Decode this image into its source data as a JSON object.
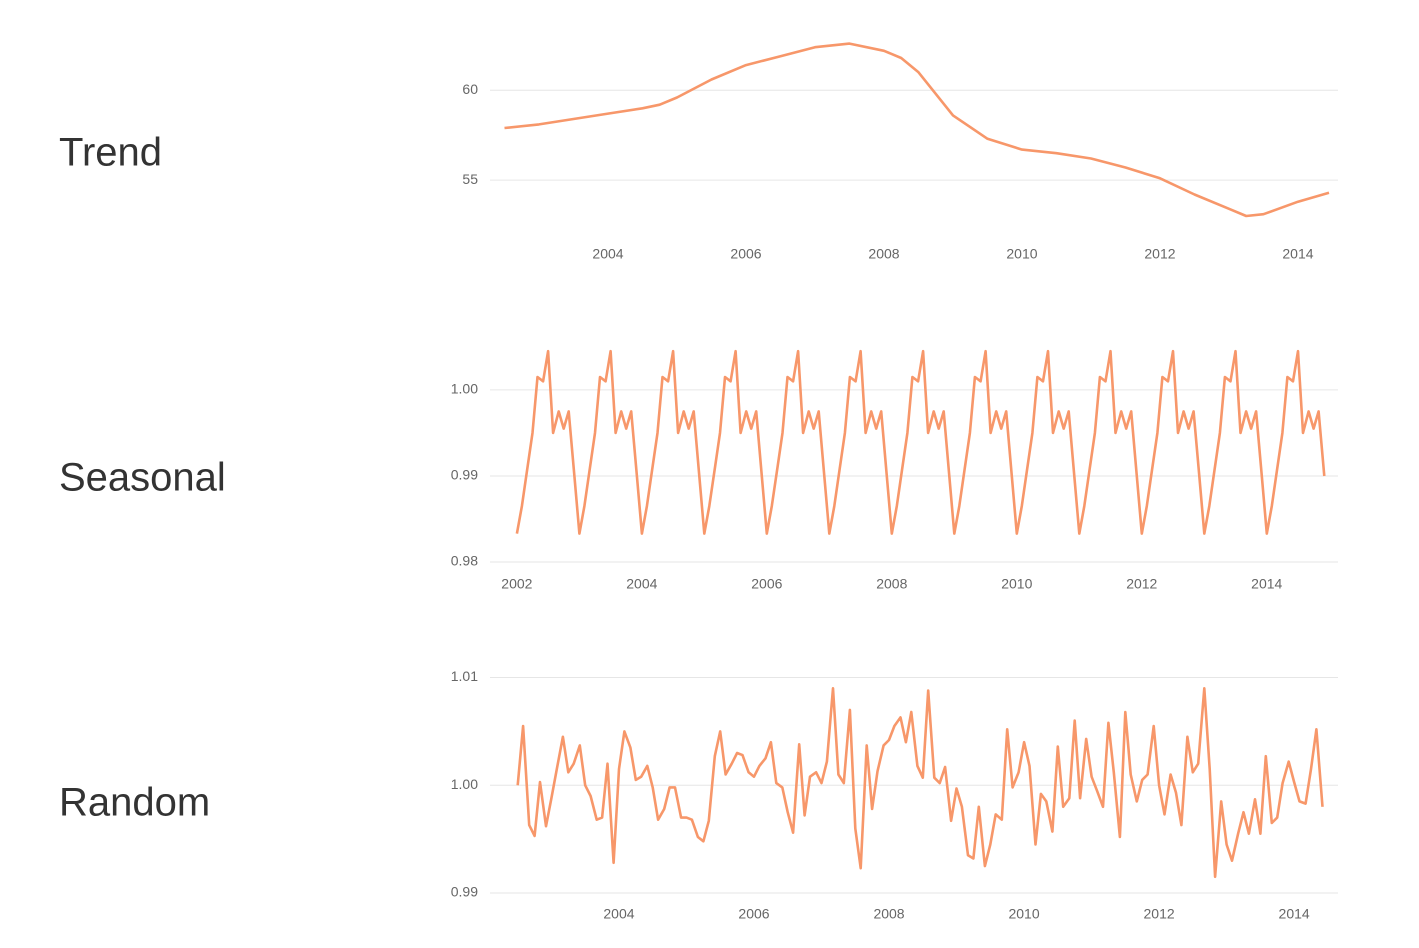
{
  "chart_data": [
    {
      "type": "line",
      "title": "Trend",
      "color": "#f7976a",
      "grid": true,
      "x": [
        2002.5,
        2003,
        2003.5,
        2004,
        2004.5,
        2004.75,
        2005,
        2005.5,
        2006,
        2006.5,
        2007,
        2007.5,
        2008,
        2008.25,
        2008.5,
        2009,
        2009.5,
        2010,
        2010.5,
        2011,
        2011.5,
        2012,
        2012.5,
        2013,
        2013.25,
        2013.5,
        2014,
        2014.45
      ],
      "values": [
        57.9,
        58.1,
        58.4,
        58.7,
        59.0,
        59.2,
        59.6,
        60.6,
        61.4,
        61.9,
        62.4,
        62.6,
        62.2,
        61.8,
        61.0,
        58.6,
        57.3,
        56.7,
        56.5,
        56.2,
        55.7,
        55.1,
        54.2,
        53.4,
        53.0,
        53.1,
        53.8,
        54.3
      ],
      "xlim": [
        2002.29,
        2014.58
      ],
      "xticks": [
        2004,
        2006,
        2008,
        2010,
        2012,
        2014
      ],
      "ylim": [
        52.5,
        62.8
      ],
      "yticks": [
        55,
        60
      ]
    },
    {
      "type": "line",
      "title": "Seasonal",
      "color": "#f7976a",
      "grid": true,
      "x": [
        2002.0,
        2002.08,
        2002.17,
        2002.25,
        2002.33,
        2002.42,
        2002.5,
        2002.58,
        2002.67,
        2002.75,
        2002.83,
        2002.92,
        2003.0,
        2003.08,
        2003.17,
        2003.25,
        2003.33,
        2003.42,
        2003.5,
        2003.58,
        2003.67,
        2003.75,
        2003.83,
        2003.92,
        2004.0,
        2004.08,
        2004.17,
        2004.25,
        2004.33,
        2004.42,
        2004.5,
        2004.58,
        2004.67,
        2004.75,
        2004.83,
        2004.92,
        2005.0,
        2005.08,
        2005.17,
        2005.25,
        2005.33,
        2005.42,
        2005.5,
        2005.58,
        2005.67,
        2005.75,
        2005.83,
        2005.92,
        2006.0,
        2006.08,
        2006.17,
        2006.25,
        2006.33,
        2006.42,
        2006.5,
        2006.58,
        2006.67,
        2006.75,
        2006.83,
        2006.92,
        2007.0,
        2007.08,
        2007.17,
        2007.25,
        2007.33,
        2007.42,
        2007.5,
        2007.58,
        2007.67,
        2007.75,
        2007.83,
        2007.92,
        2008.0,
        2008.08,
        2008.17,
        2008.25,
        2008.33,
        2008.42,
        2008.5,
        2008.58,
        2008.67,
        2008.75,
        2008.83,
        2008.92,
        2009.0,
        2009.08,
        2009.17,
        2009.25,
        2009.33,
        2009.42,
        2009.5,
        2009.58,
        2009.67,
        2009.75,
        2009.83,
        2009.92,
        2010.0,
        2010.08,
        2010.17,
        2010.25,
        2010.33,
        2010.42,
        2010.5,
        2010.58,
        2010.67,
        2010.75,
        2010.83,
        2010.92,
        2011.0,
        2011.08,
        2011.17,
        2011.25,
        2011.33,
        2011.42,
        2011.5,
        2011.58,
        2011.67,
        2011.75,
        2011.83,
        2011.92,
        2012.0,
        2012.08,
        2012.17,
        2012.25,
        2012.33,
        2012.42,
        2012.5,
        2012.58,
        2012.67,
        2012.75,
        2012.83,
        2012.92,
        2013.0,
        2013.08,
        2013.17,
        2013.25,
        2013.33,
        2013.42,
        2013.5,
        2013.58,
        2013.67,
        2013.75,
        2013.83,
        2013.92,
        2014.0,
        2014.08,
        2014.17,
        2014.25,
        2014.33,
        2014.42,
        2014.5,
        2014.58,
        2014.67,
        2014.75,
        2014.83,
        2014.92
      ],
      "values": [
        0.9833,
        0.9865,
        0.991,
        0.995,
        1.0015,
        1.001,
        1.0045,
        0.995,
        0.9975,
        0.9955,
        0.9975,
        0.99,
        0.9833,
        0.9865,
        0.991,
        0.995,
        1.0015,
        1.001,
        1.0045,
        0.995,
        0.9975,
        0.9955,
        0.9975,
        0.99,
        0.9833,
        0.9865,
        0.991,
        0.995,
        1.0015,
        1.001,
        1.0045,
        0.995,
        0.9975,
        0.9955,
        0.9975,
        0.99,
        0.9833,
        0.9865,
        0.991,
        0.995,
        1.0015,
        1.001,
        1.0045,
        0.995,
        0.9975,
        0.9955,
        0.9975,
        0.99,
        0.9833,
        0.9865,
        0.991,
        0.995,
        1.0015,
        1.001,
        1.0045,
        0.995,
        0.9975,
        0.9955,
        0.9975,
        0.99,
        0.9833,
        0.9865,
        0.991,
        0.995,
        1.0015,
        1.001,
        1.0045,
        0.995,
        0.9975,
        0.9955,
        0.9975,
        0.99,
        0.9833,
        0.9865,
        0.991,
        0.995,
        1.0015,
        1.001,
        1.0045,
        0.995,
        0.9975,
        0.9955,
        0.9975,
        0.99,
        0.9833,
        0.9865,
        0.991,
        0.995,
        1.0015,
        1.001,
        1.0045,
        0.995,
        0.9975,
        0.9955,
        0.9975,
        0.99,
        0.9833,
        0.9865,
        0.991,
        0.995,
        1.0015,
        1.001,
        1.0045,
        0.995,
        0.9975,
        0.9955,
        0.9975,
        0.99,
        0.9833,
        0.9865,
        0.991,
        0.995,
        1.0015,
        1.001,
        1.0045,
        0.995,
        0.9975,
        0.9955,
        0.9975,
        0.99,
        0.9833,
        0.9865,
        0.991,
        0.995,
        1.0015,
        1.001,
        1.0045,
        0.995,
        0.9975,
        0.9955,
        0.9975,
        0.99,
        0.9833,
        0.9865,
        0.991,
        0.995,
        1.0015,
        1.001,
        1.0045,
        0.995,
        0.9975,
        0.9955,
        0.9975,
        0.99,
        0.9833,
        0.9865,
        0.991,
        0.995,
        1.0015,
        1.001,
        1.0045,
        0.995,
        0.9975,
        0.9955,
        0.9975,
        0.99
      ],
      "xlim": [
        2001.57,
        2015.14
      ],
      "xticks": [
        2002,
        2004,
        2006,
        2008,
        2010,
        2012,
        2014
      ],
      "ylim": [
        0.98,
        1.0058
      ],
      "yticks": [
        0.98,
        0.99,
        {
          "value": 1,
          "label": "1.00"
        }
      ]
    },
    {
      "type": "line",
      "title": "Random",
      "color": "#f7976a",
      "grid": true,
      "x": [
        2002.5,
        2002.58,
        2002.67,
        2002.75,
        2002.83,
        2002.92,
        2003.0,
        2003.08,
        2003.17,
        2003.25,
        2003.33,
        2003.42,
        2003.5,
        2003.58,
        2003.67,
        2003.75,
        2003.83,
        2003.92,
        2004.0,
        2004.08,
        2004.17,
        2004.25,
        2004.33,
        2004.42,
        2004.5,
        2004.58,
        2004.67,
        2004.75,
        2004.83,
        2004.92,
        2005.0,
        2005.08,
        2005.17,
        2005.25,
        2005.33,
        2005.42,
        2005.5,
        2005.58,
        2005.67,
        2005.75,
        2005.83,
        2005.92,
        2006.0,
        2006.08,
        2006.17,
        2006.25,
        2006.33,
        2006.42,
        2006.5,
        2006.58,
        2006.67,
        2006.75,
        2006.83,
        2006.92,
        2007.0,
        2007.08,
        2007.17,
        2007.25,
        2007.33,
        2007.42,
        2007.5,
        2007.58,
        2007.67,
        2007.75,
        2007.83,
        2007.92,
        2008.0,
        2008.08,
        2008.17,
        2008.25,
        2008.33,
        2008.42,
        2008.5,
        2008.58,
        2008.67,
        2008.75,
        2008.83,
        2008.92,
        2009.0,
        2009.08,
        2009.17,
        2009.25,
        2009.33,
        2009.42,
        2009.5,
        2009.58,
        2009.67,
        2009.75,
        2009.83,
        2009.92,
        2010.0,
        2010.08,
        2010.17,
        2010.25,
        2010.33,
        2010.42,
        2010.5,
        2010.58,
        2010.67,
        2010.75,
        2010.83,
        2010.92,
        2011.0,
        2011.08,
        2011.17,
        2011.25,
        2011.33,
        2011.42,
        2011.5,
        2011.58,
        2011.67,
        2011.75,
        2011.83,
        2011.92,
        2012.0,
        2012.08,
        2012.17,
        2012.25,
        2012.33,
        2012.42,
        2012.5,
        2012.58,
        2012.67,
        2012.75,
        2012.83,
        2012.92,
        2013.0,
        2013.08,
        2013.17,
        2013.25,
        2013.33,
        2013.42,
        2013.5,
        2013.58,
        2013.67,
        2013.75,
        2013.83,
        2013.92,
        2014.0,
        2014.08,
        2014.17,
        2014.25,
        2014.33,
        2014.42
      ],
      "values": [
        1.0,
        1.0055,
        0.9963,
        0.9953,
        1.0003,
        0.9962,
        0.9988,
        1.0015,
        1.0045,
        1.0012,
        1.002,
        1.0037,
        1.0,
        0.999,
        0.9968,
        0.997,
        1.002,
        0.9928,
        1.0015,
        1.005,
        1.0035,
        1.0005,
        1.0008,
        1.0018,
        0.9998,
        0.9968,
        0.9978,
        0.9998,
        0.9998,
        0.997,
        0.997,
        0.9968,
        0.9952,
        0.9948,
        0.9967,
        1.0027,
        1.005,
        1.001,
        1.002,
        1.003,
        1.0028,
        1.0012,
        1.0008,
        1.0018,
        1.0025,
        1.004,
        1.0002,
        0.9998,
        0.9975,
        0.9956,
        1.0038,
        0.9972,
        1.0008,
        1.0012,
        1.0002,
        1.0022,
        1.009,
        1.001,
        1.0002,
        1.007,
        0.996,
        0.9923,
        1.0037,
        0.9978,
        1.0013,
        1.0037,
        1.0042,
        1.0055,
        1.0063,
        1.004,
        1.0068,
        1.0018,
        1.0007,
        1.0088,
        1.0007,
        1.0002,
        1.0017,
        0.9967,
        0.9997,
        0.998,
        0.9935,
        0.9932,
        0.998,
        0.9925,
        0.9945,
        0.9973,
        0.9968,
        1.0052,
        0.9998,
        1.0012,
        1.004,
        1.0018,
        0.9945,
        0.9992,
        0.9985,
        0.9957,
        1.0036,
        0.998,
        0.9988,
        1.006,
        0.9988,
        1.0043,
        1.0008,
        0.9995,
        0.998,
        1.0058,
        1.0012,
        0.9952,
        1.0068,
        1.001,
        0.9985,
        1.0005,
        1.001,
        1.0055,
        1.0,
        0.9973,
        1.001,
        0.9993,
        0.9963,
        1.0045,
        1.0012,
        1.002,
        1.009,
        1.0015,
        0.9915,
        0.9985,
        0.9945,
        0.993,
        0.9955,
        0.9975,
        0.9955,
        0.9987,
        0.9955,
        1.0027,
        0.9965,
        0.997,
        1.0002,
        1.0022,
        1.0003,
        0.9985,
        0.9983,
        1.0015,
        1.0052,
        0.998
      ],
      "xlim": [
        2002.09,
        2014.65
      ],
      "xticks": [
        2004,
        2006,
        2008,
        2010,
        2012,
        2014
      ],
      "ylim": [
        0.99,
        1.0107
      ],
      "yticks": [
        0.99,
        {
          "value": 1,
          "label": "1.00"
        },
        1.01
      ]
    }
  ]
}
